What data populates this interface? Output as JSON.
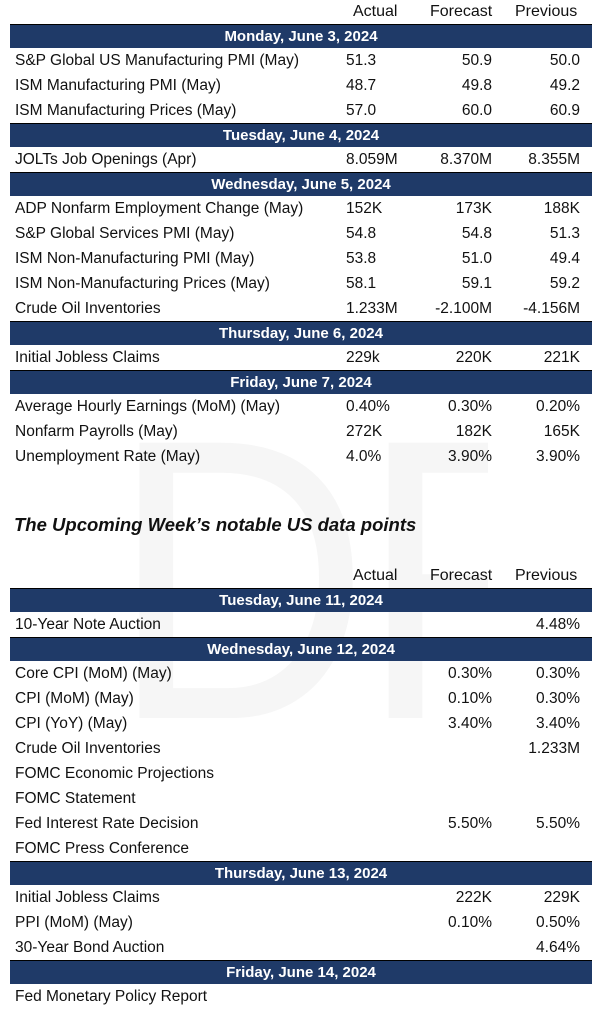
{
  "columns": {
    "actual": "Actual",
    "forecast": "Forecast",
    "previous": "Previous"
  },
  "past_week": [
    {
      "day": "Monday, June 3, 2024",
      "rows": [
        {
          "label": "S&P Global US Manufacturing PMI (May)",
          "actual": "51.3",
          "forecast": "50.9",
          "previous": "50.0"
        },
        {
          "label": "ISM Manufacturing PMI (May)",
          "actual": "48.7",
          "forecast": "49.8",
          "previous": "49.2"
        },
        {
          "label": "ISM Manufacturing Prices (May)",
          "actual": "57.0",
          "forecast": "60.0",
          "previous": "60.9"
        }
      ]
    },
    {
      "day": "Tuesday, June 4, 2024",
      "rows": [
        {
          "label": "JOLTs Job Openings (Apr)",
          "actual": "8.059M",
          "forecast": "8.370M",
          "previous": "8.355M"
        }
      ]
    },
    {
      "day": "Wednesday, June 5, 2024",
      "rows": [
        {
          "label": "ADP Nonfarm Employment Change (May)",
          "actual": "152K",
          "forecast": "173K",
          "previous": "188K"
        },
        {
          "label": "S&P Global Services PMI (May)",
          "actual": "54.8",
          "forecast": "54.8",
          "previous": "51.3"
        },
        {
          "label": "ISM Non-Manufacturing PMI (May)",
          "actual": "53.8",
          "forecast": "51.0",
          "previous": "49.4"
        },
        {
          "label": "ISM Non-Manufacturing Prices (May)",
          "actual": "58.1",
          "forecast": "59.1",
          "previous": "59.2"
        },
        {
          "label": "Crude Oil Inventories",
          "actual": "1.233M",
          "forecast": "-2.100M",
          "previous": "-4.156M"
        }
      ]
    },
    {
      "day": "Thursday, June 6, 2024",
      "rows": [
        {
          "label": "Initial Jobless Claims",
          "actual": "229k",
          "forecast": "220K",
          "previous": "221K"
        }
      ]
    },
    {
      "day": "Friday, June 7, 2024",
      "rows": [
        {
          "label": "Average Hourly Earnings (MoM) (May)",
          "actual": "0.40%",
          "forecast": "0.30%",
          "previous": "0.20%"
        },
        {
          "label": "Nonfarm Payrolls (May)",
          "actual": "272K",
          "forecast": "182K",
          "previous": "165K"
        },
        {
          "label": "Unemployment Rate (May)",
          "actual": "4.0%",
          "forecast": "3.90%",
          "previous": "3.90%"
        }
      ]
    }
  ],
  "upcoming_title": "The Upcoming Week’s notable US data points",
  "upcoming_week": [
    {
      "day": "Tuesday, June 11, 2024",
      "rows": [
        {
          "label": "10-Year Note Auction",
          "actual": "",
          "forecast": "",
          "previous": "4.48%"
        }
      ]
    },
    {
      "day": "Wednesday, June 12, 2024",
      "rows": [
        {
          "label": "Core CPI (MoM) (May)",
          "actual": "",
          "forecast": "0.30%",
          "previous": "0.30%"
        },
        {
          "label": "CPI (MoM) (May)",
          "actual": "",
          "forecast": "0.10%",
          "previous": "0.30%"
        },
        {
          "label": "CPI (YoY) (May)",
          "actual": "",
          "forecast": "3.40%",
          "previous": "3.40%"
        },
        {
          "label": "Crude Oil Inventories",
          "actual": "",
          "forecast": "",
          "previous": "1.233M"
        },
        {
          "label": "FOMC Economic Projections",
          "actual": "",
          "forecast": "",
          "previous": ""
        },
        {
          "label": "FOMC Statement",
          "actual": "",
          "forecast": "",
          "previous": ""
        },
        {
          "label": "Fed Interest Rate Decision",
          "actual": "",
          "forecast": "5.50%",
          "previous": "5.50%"
        },
        {
          "label": "FOMC Press Conference",
          "actual": "",
          "forecast": "",
          "previous": ""
        }
      ]
    },
    {
      "day": "Thursday, June 13, 2024",
      "rows": [
        {
          "label": "Initial Jobless Claims",
          "actual": "",
          "forecast": "222K",
          "previous": "229K"
        },
        {
          "label": "PPI (MoM) (May)",
          "actual": "",
          "forecast": "0.10%",
          "previous": "0.50%"
        },
        {
          "label": "30-Year Bond Auction",
          "actual": "",
          "forecast": "",
          "previous": "4.64%"
        }
      ]
    },
    {
      "day": "Friday, June 14, 2024",
      "rows": [
        {
          "label": "Fed Monetary Policy Report",
          "actual": "",
          "forecast": "",
          "previous": ""
        }
      ]
    }
  ]
}
